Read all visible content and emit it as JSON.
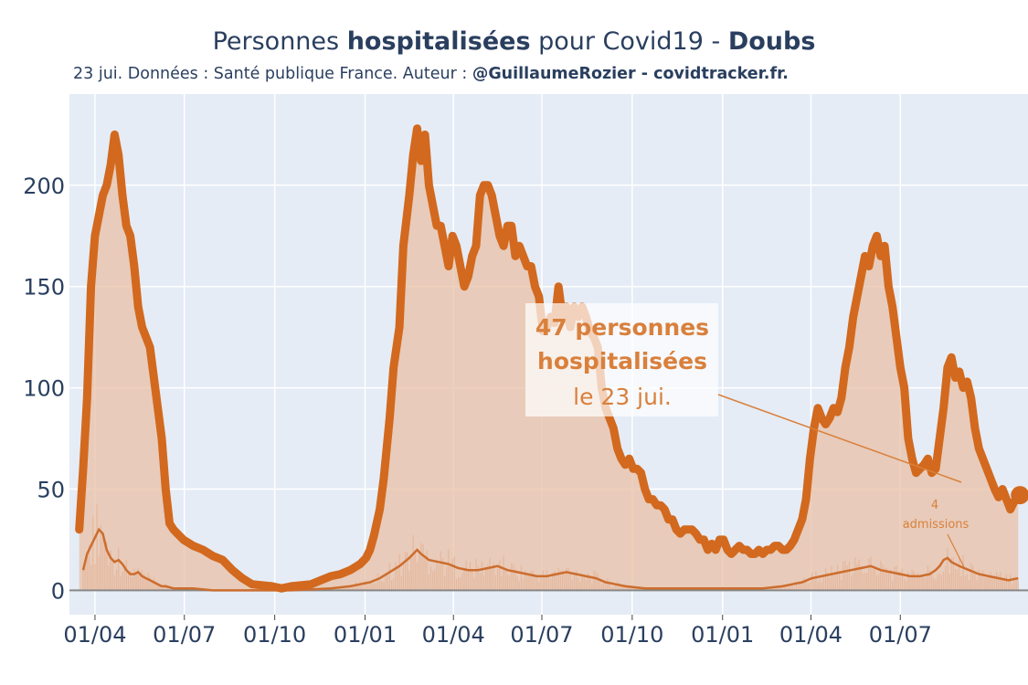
{
  "title": {
    "prefix": "Personnes ",
    "bold1": "hospitalisées",
    "middle": " pour Covid19 - ",
    "bold2": "Doubs"
  },
  "subtitle": {
    "plain": "23 jui. Données : Santé publique France. Auteur : ",
    "bold": "@GuillaumeRozier - covidtracker.fr."
  },
  "colors": {
    "main_line": "#d2691e",
    "fill": "#e8c0a5",
    "admissions_line": "#cc6d2e",
    "admissions_bars": "#e5b396",
    "plot_bg": "#e5ecf6",
    "grid": "#ffffff",
    "zero_line": "#888888",
    "annotation_text": "#d9803c"
  },
  "annotation": {
    "line1": "47 personnes",
    "line2": "hospitalisées",
    "line3": "le 23 jui."
  },
  "admissions_note": {
    "value": "4",
    "label": "admissions"
  },
  "chart_data": {
    "type": "area",
    "x_tick_labels": [
      "01/04",
      "01/07",
      "01/10",
      "01/01",
      "01/04",
      "01/07",
      "01/10",
      "01/01",
      "01/04",
      "01/07"
    ],
    "y_tick_labels": [
      "0",
      "50",
      "100",
      "150",
      "200"
    ],
    "ylim": [
      -12,
      245
    ],
    "x_days_range": [
      -13,
      475
    ],
    "grid": true,
    "series": [
      {
        "role": "hospitalisations",
        "points": [
          [
            -8,
            30
          ],
          [
            -6,
            60
          ],
          [
            -4,
            95
          ],
          [
            -2,
            150
          ],
          [
            0,
            175
          ],
          [
            2,
            185
          ],
          [
            4,
            195
          ],
          [
            6,
            200
          ],
          [
            8,
            210
          ],
          [
            10,
            225
          ],
          [
            12,
            215
          ],
          [
            14,
            195
          ],
          [
            16,
            180
          ],
          [
            18,
            175
          ],
          [
            20,
            160
          ],
          [
            22,
            140
          ],
          [
            24,
            130
          ],
          [
            26,
            125
          ],
          [
            28,
            120
          ],
          [
            30,
            105
          ],
          [
            32,
            90
          ],
          [
            34,
            75
          ],
          [
            36,
            50
          ],
          [
            38,
            33
          ],
          [
            40,
            30
          ],
          [
            42,
            28
          ],
          [
            45,
            25
          ],
          [
            50,
            22
          ],
          [
            55,
            20
          ],
          [
            60,
            17
          ],
          [
            65,
            15
          ],
          [
            70,
            10
          ],
          [
            75,
            6
          ],
          [
            80,
            3
          ],
          [
            90,
            2
          ],
          [
            95,
            1
          ],
          [
            100,
            2
          ],
          [
            110,
            3
          ],
          [
            115,
            5
          ],
          [
            120,
            7
          ],
          [
            125,
            8
          ],
          [
            130,
            10
          ],
          [
            135,
            13
          ],
          [
            138,
            16
          ],
          [
            140,
            20
          ],
          [
            142,
            27
          ],
          [
            145,
            40
          ],
          [
            147,
            55
          ],
          [
            150,
            85
          ],
          [
            152,
            110
          ],
          [
            155,
            130
          ],
          [
            157,
            170
          ],
          [
            160,
            195
          ],
          [
            162,
            215
          ],
          [
            164,
            228
          ],
          [
            166,
            212
          ],
          [
            168,
            225
          ],
          [
            170,
            200
          ],
          [
            172,
            190
          ],
          [
            174,
            180
          ],
          [
            176,
            180
          ],
          [
            178,
            170
          ],
          [
            180,
            160
          ],
          [
            182,
            175
          ],
          [
            184,
            170
          ],
          [
            186,
            160
          ],
          [
            188,
            150
          ],
          [
            190,
            155
          ],
          [
            192,
            165
          ],
          [
            194,
            170
          ],
          [
            196,
            195
          ],
          [
            198,
            200
          ],
          [
            200,
            200
          ],
          [
            202,
            195
          ],
          [
            204,
            185
          ],
          [
            206,
            175
          ],
          [
            208,
            170
          ],
          [
            210,
            180
          ],
          [
            212,
            180
          ],
          [
            214,
            165
          ],
          [
            216,
            170
          ],
          [
            218,
            165
          ],
          [
            220,
            160
          ],
          [
            222,
            160
          ],
          [
            224,
            150
          ],
          [
            226,
            145
          ],
          [
            228,
            128
          ],
          [
            230,
            130
          ],
          [
            232,
            135
          ],
          [
            234,
            132
          ],
          [
            236,
            150
          ],
          [
            238,
            135
          ],
          [
            240,
            140
          ],
          [
            242,
            130
          ],
          [
            244,
            140
          ],
          [
            246,
            135
          ],
          [
            248,
            140
          ],
          [
            250,
            135
          ],
          [
            252,
            128
          ],
          [
            254,
            125
          ],
          [
            256,
            120
          ],
          [
            258,
            100
          ],
          [
            260,
            90
          ],
          [
            262,
            85
          ],
          [
            264,
            80
          ],
          [
            266,
            70
          ],
          [
            268,
            65
          ],
          [
            270,
            62
          ],
          [
            272,
            65
          ],
          [
            274,
            60
          ],
          [
            276,
            60
          ],
          [
            278,
            58
          ],
          [
            280,
            50
          ],
          [
            282,
            45
          ],
          [
            284,
            45
          ],
          [
            286,
            42
          ],
          [
            288,
            42
          ],
          [
            290,
            40
          ],
          [
            292,
            35
          ],
          [
            294,
            35
          ],
          [
            296,
            30
          ],
          [
            298,
            28
          ],
          [
            300,
            30
          ],
          [
            302,
            30
          ],
          [
            304,
            30
          ],
          [
            306,
            28
          ],
          [
            308,
            25
          ],
          [
            310,
            25
          ],
          [
            312,
            20
          ],
          [
            314,
            23
          ],
          [
            316,
            20
          ],
          [
            318,
            25
          ],
          [
            320,
            25
          ],
          [
            322,
            20
          ],
          [
            324,
            18
          ],
          [
            326,
            20
          ],
          [
            328,
            22
          ],
          [
            330,
            20
          ],
          [
            332,
            20
          ],
          [
            334,
            18
          ],
          [
            336,
            18
          ],
          [
            338,
            20
          ],
          [
            340,
            18
          ],
          [
            342,
            20
          ],
          [
            344,
            20
          ],
          [
            346,
            22
          ],
          [
            348,
            22
          ],
          [
            350,
            20
          ],
          [
            352,
            20
          ],
          [
            354,
            22
          ],
          [
            356,
            25
          ],
          [
            358,
            30
          ],
          [
            360,
            35
          ],
          [
            362,
            45
          ],
          [
            364,
            65
          ],
          [
            366,
            80
          ],
          [
            368,
            90
          ],
          [
            370,
            85
          ],
          [
            372,
            82
          ],
          [
            374,
            85
          ],
          [
            376,
            90
          ],
          [
            378,
            88
          ],
          [
            380,
            95
          ],
          [
            382,
            110
          ],
          [
            384,
            120
          ],
          [
            386,
            135
          ],
          [
            388,
            145
          ],
          [
            390,
            155
          ],
          [
            392,
            165
          ],
          [
            394,
            160
          ],
          [
            396,
            170
          ],
          [
            398,
            175
          ],
          [
            400,
            165
          ],
          [
            402,
            170
          ],
          [
            404,
            150
          ],
          [
            406,
            140
          ],
          [
            408,
            125
          ],
          [
            410,
            110
          ],
          [
            412,
            100
          ],
          [
            414,
            75
          ],
          [
            416,
            65
          ],
          [
            418,
            58
          ],
          [
            420,
            60
          ],
          [
            422,
            62
          ],
          [
            424,
            65
          ],
          [
            426,
            58
          ],
          [
            428,
            60
          ],
          [
            430,
            75
          ],
          [
            432,
            90
          ],
          [
            434,
            110
          ],
          [
            436,
            115
          ],
          [
            438,
            105
          ],
          [
            440,
            108
          ],
          [
            442,
            100
          ],
          [
            444,
            103
          ],
          [
            446,
            95
          ],
          [
            448,
            80
          ],
          [
            450,
            70
          ],
          [
            452,
            65
          ],
          [
            454,
            60
          ],
          [
            456,
            55
          ],
          [
            458,
            50
          ],
          [
            460,
            46
          ],
          [
            462,
            50
          ],
          [
            464,
            45
          ],
          [
            466,
            40
          ],
          [
            468,
            44
          ],
          [
            470,
            47
          ]
        ]
      },
      {
        "role": "admissions_smoothed",
        "points": [
          [
            -6,
            10
          ],
          [
            -4,
            18
          ],
          [
            -2,
            22
          ],
          [
            0,
            26
          ],
          [
            2,
            30
          ],
          [
            4,
            28
          ],
          [
            6,
            20
          ],
          [
            8,
            16
          ],
          [
            10,
            14
          ],
          [
            12,
            15
          ],
          [
            14,
            13
          ],
          [
            16,
            10
          ],
          [
            18,
            8
          ],
          [
            20,
            8
          ],
          [
            22,
            9
          ],
          [
            24,
            7
          ],
          [
            26,
            6
          ],
          [
            28,
            5
          ],
          [
            30,
            4
          ],
          [
            32,
            3
          ],
          [
            34,
            2
          ],
          [
            36,
            2
          ],
          [
            40,
            1
          ],
          [
            50,
            1
          ],
          [
            60,
            0
          ],
          [
            80,
            0
          ],
          [
            100,
            0
          ],
          [
            120,
            1
          ],
          [
            130,
            2
          ],
          [
            135,
            3
          ],
          [
            140,
            4
          ],
          [
            145,
            6
          ],
          [
            150,
            9
          ],
          [
            155,
            12
          ],
          [
            160,
            16
          ],
          [
            162,
            18
          ],
          [
            164,
            20
          ],
          [
            166,
            18
          ],
          [
            170,
            15
          ],
          [
            175,
            14
          ],
          [
            180,
            13
          ],
          [
            185,
            11
          ],
          [
            190,
            10
          ],
          [
            195,
            10
          ],
          [
            200,
            11
          ],
          [
            205,
            12
          ],
          [
            210,
            10
          ],
          [
            215,
            9
          ],
          [
            220,
            8
          ],
          [
            225,
            7
          ],
          [
            230,
            7
          ],
          [
            235,
            8
          ],
          [
            240,
            9
          ],
          [
            245,
            8
          ],
          [
            250,
            7
          ],
          [
            255,
            6
          ],
          [
            260,
            4
          ],
          [
            265,
            3
          ],
          [
            270,
            2
          ],
          [
            280,
            1
          ],
          [
            300,
            1
          ],
          [
            320,
            1
          ],
          [
            340,
            1
          ],
          [
            350,
            2
          ],
          [
            355,
            3
          ],
          [
            360,
            4
          ],
          [
            365,
            6
          ],
          [
            370,
            7
          ],
          [
            375,
            8
          ],
          [
            380,
            9
          ],
          [
            385,
            10
          ],
          [
            390,
            11
          ],
          [
            395,
            12
          ],
          [
            400,
            10
          ],
          [
            405,
            9
          ],
          [
            410,
            8
          ],
          [
            415,
            7
          ],
          [
            420,
            7
          ],
          [
            425,
            8
          ],
          [
            428,
            10
          ],
          [
            430,
            12
          ],
          [
            432,
            15
          ],
          [
            434,
            16
          ],
          [
            436,
            14
          ],
          [
            440,
            12
          ],
          [
            445,
            10
          ],
          [
            450,
            8
          ],
          [
            455,
            7
          ],
          [
            460,
            6
          ],
          [
            465,
            5
          ],
          [
            470,
            6
          ]
        ]
      }
    ]
  }
}
